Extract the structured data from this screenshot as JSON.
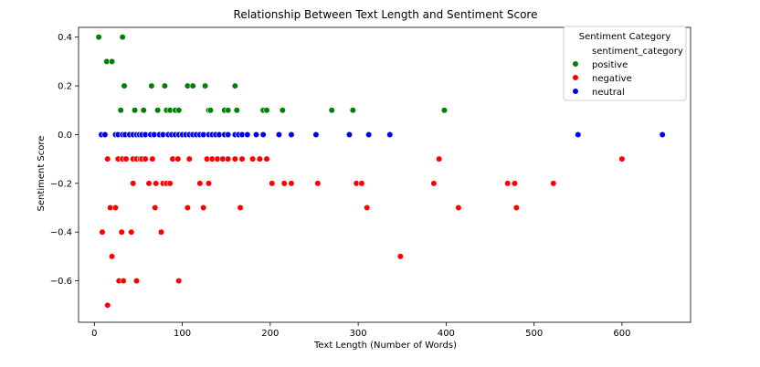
{
  "chart_data": {
    "type": "scatter",
    "title": "Relationship Between Text Length and Sentiment Score",
    "xlabel": "Text Length (Number of Words)",
    "ylabel": "Sentiment Score",
    "xlim": [
      -18,
      678
    ],
    "ylim": [
      -0.77,
      0.44
    ],
    "xticks": [
      0,
      100,
      200,
      300,
      400,
      500,
      600
    ],
    "xtick_labels": [
      "0",
      "100",
      "200",
      "300",
      "400",
      "500",
      "600"
    ],
    "yticks": [
      -0.6,
      -0.4,
      -0.2,
      0.0,
      0.2,
      0.4
    ],
    "ytick_labels": [
      "−0.6",
      "−0.4",
      "−0.2",
      "0.0",
      "0.2",
      "0.4"
    ],
    "grid": false,
    "legend": {
      "title": "Sentiment Category",
      "subtitle": "sentiment_category",
      "placement": "top-right",
      "entries": [
        "positive",
        "negative",
        "neutral"
      ]
    },
    "colors": {
      "positive": "#008000",
      "negative": "#ff0000",
      "neutral": "#0000ff"
    },
    "series": [
      {
        "name": "positive",
        "points": [
          [
            5,
            0.4
          ],
          [
            14,
            0.3
          ],
          [
            20,
            0.3
          ],
          [
            32,
            0.4
          ],
          [
            34,
            0.2
          ],
          [
            30,
            0.1
          ],
          [
            46,
            0.1
          ],
          [
            56,
            0.1
          ],
          [
            65,
            0.2
          ],
          [
            72,
            0.1
          ],
          [
            80,
            0.2
          ],
          [
            82,
            0.1
          ],
          [
            86,
            0.1
          ],
          [
            92,
            0.1
          ],
          [
            96,
            0.1
          ],
          [
            106,
            0.2
          ],
          [
            112,
            0.2
          ],
          [
            126,
            0.2
          ],
          [
            130,
            0.1
          ],
          [
            132,
            0.1
          ],
          [
            148,
            0.1
          ],
          [
            152,
            0.1
          ],
          [
            160,
            0.2
          ],
          [
            162,
            0.1
          ],
          [
            192,
            0.1
          ],
          [
            196,
            0.1
          ],
          [
            214,
            0.1
          ],
          [
            270,
            0.1
          ],
          [
            294,
            0.1
          ],
          [
            398,
            0.1
          ]
        ]
      },
      {
        "name": "negative",
        "points": [
          [
            9,
            -0.4
          ],
          [
            15,
            -0.1
          ],
          [
            18,
            -0.3
          ],
          [
            20,
            -0.5
          ],
          [
            24,
            -0.3
          ],
          [
            27,
            -0.1
          ],
          [
            28,
            -0.6
          ],
          [
            31,
            -0.4
          ],
          [
            32,
            -0.1
          ],
          [
            33,
            -0.6
          ],
          [
            36,
            -0.1
          ],
          [
            15,
            -0.7
          ],
          [
            42,
            -0.4
          ],
          [
            44,
            -0.2
          ],
          [
            44,
            -0.1
          ],
          [
            48,
            -0.6
          ],
          [
            48,
            -0.1
          ],
          [
            52,
            -0.1
          ],
          [
            54,
            -0.1
          ],
          [
            58,
            -0.1
          ],
          [
            62,
            -0.2
          ],
          [
            66,
            -0.1
          ],
          [
            69,
            -0.3
          ],
          [
            70,
            -0.2
          ],
          [
            76,
            -0.4
          ],
          [
            78,
            -0.2
          ],
          [
            82,
            -0.2
          ],
          [
            86,
            -0.2
          ],
          [
            89,
            -0.1
          ],
          [
            95,
            -0.1
          ],
          [
            96,
            -0.6
          ],
          [
            106,
            -0.3
          ],
          [
            108,
            -0.1
          ],
          [
            120,
            -0.2
          ],
          [
            124,
            -0.3
          ],
          [
            128,
            -0.1
          ],
          [
            130,
            -0.2
          ],
          [
            134,
            -0.1
          ],
          [
            140,
            -0.1
          ],
          [
            146,
            -0.1
          ],
          [
            152,
            -0.1
          ],
          [
            160,
            -0.1
          ],
          [
            166,
            -0.3
          ],
          [
            168,
            -0.1
          ],
          [
            180,
            -0.1
          ],
          [
            188,
            -0.1
          ],
          [
            196,
            -0.1
          ],
          [
            202,
            -0.2
          ],
          [
            216,
            -0.2
          ],
          [
            224,
            -0.2
          ],
          [
            254,
            -0.2
          ],
          [
            298,
            -0.2
          ],
          [
            304,
            -0.2
          ],
          [
            310,
            -0.3
          ],
          [
            348,
            -0.5
          ],
          [
            386,
            -0.2
          ],
          [
            392,
            -0.1
          ],
          [
            414,
            -0.3
          ],
          [
            470,
            -0.2
          ],
          [
            478,
            -0.2
          ],
          [
            480,
            -0.3
          ],
          [
            522,
            -0.2
          ],
          [
            600,
            -0.1
          ]
        ]
      },
      {
        "name": "neutral",
        "points": [
          [
            8,
            0.0
          ],
          [
            12,
            0.0
          ],
          [
            24,
            0.0
          ],
          [
            27,
            0.0
          ],
          [
            32,
            0.0
          ],
          [
            35,
            0.0
          ],
          [
            40,
            0.0
          ],
          [
            44,
            0.0
          ],
          [
            48,
            0.0
          ],
          [
            51,
            0.0
          ],
          [
            54,
            0.0
          ],
          [
            58,
            0.0
          ],
          [
            64,
            0.0
          ],
          [
            68,
            0.0
          ],
          [
            74,
            0.0
          ],
          [
            78,
            0.0
          ],
          [
            84,
            0.0
          ],
          [
            88,
            0.0
          ],
          [
            92,
            0.0
          ],
          [
            96,
            0.0
          ],
          [
            100,
            0.0
          ],
          [
            104,
            0.0
          ],
          [
            108,
            0.0
          ],
          [
            112,
            0.0
          ],
          [
            116,
            0.0
          ],
          [
            120,
            0.0
          ],
          [
            124,
            0.0
          ],
          [
            130,
            0.0
          ],
          [
            134,
            0.0
          ],
          [
            138,
            0.0
          ],
          [
            142,
            0.0
          ],
          [
            148,
            0.0
          ],
          [
            152,
            0.0
          ],
          [
            160,
            0.0
          ],
          [
            164,
            0.0
          ],
          [
            168,
            0.0
          ],
          [
            174,
            0.0
          ],
          [
            184,
            0.0
          ],
          [
            192,
            0.0
          ],
          [
            210,
            0.0
          ],
          [
            224,
            0.0
          ],
          [
            252,
            0.0
          ],
          [
            290,
            0.0
          ],
          [
            312,
            0.0
          ],
          [
            336,
            0.0
          ],
          [
            550,
            0.0
          ],
          [
            646,
            0.0
          ]
        ]
      }
    ]
  }
}
